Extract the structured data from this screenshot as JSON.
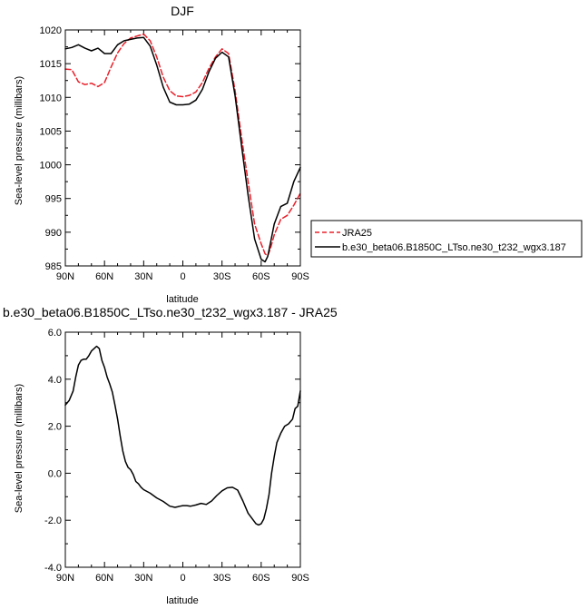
{
  "chart_data": [
    {
      "type": "line",
      "title": "DJF",
      "xlabel": "latitude",
      "ylabel": "Sea-level pressure (millibars)",
      "xlim": [
        90,
        -90
      ],
      "ylim": [
        985,
        1020
      ],
      "x_ticks": [
        90,
        60,
        30,
        0,
        -30,
        -60,
        -90
      ],
      "x_tick_labels": [
        "90N",
        "60N",
        "30N",
        "0",
        "30S",
        "60S",
        "90S"
      ],
      "y_ticks": [
        985,
        990,
        995,
        1000,
        1005,
        1010,
        1015,
        1020
      ],
      "y_tick_labels": [
        "985",
        "990",
        "995",
        "1000",
        "1005",
        "1010",
        "1015",
        "1020"
      ],
      "legend_position": "right",
      "series": [
        {
          "name": "JRA25",
          "color": "#e8202a",
          "dash": "dashed",
          "x": [
            90,
            85,
            80,
            75,
            70,
            65,
            60,
            55,
            50,
            45,
            40,
            35,
            30,
            25,
            20,
            15,
            10,
            5,
            0,
            -5,
            -10,
            -15,
            -20,
            -25,
            -30,
            -35,
            -40,
            -45,
            -50,
            -55,
            -60,
            -63,
            -65,
            -67,
            -70,
            -75,
            -80,
            -85,
            -90
          ],
          "y": [
            1014.2,
            1014.1,
            1012.3,
            1011.9,
            1012.1,
            1011.6,
            1012.2,
            1014.5,
            1016.6,
            1018.0,
            1018.8,
            1019.1,
            1019.4,
            1018.4,
            1016.0,
            1013.0,
            1011.0,
            1010.2,
            1010.1,
            1010.3,
            1010.8,
            1012.2,
            1014.3,
            1016.0,
            1017.2,
            1016.5,
            1011.0,
            1004.0,
            997.5,
            991.2,
            988.3,
            986.8,
            986.5,
            987.5,
            989.6,
            991.9,
            992.5,
            994.0,
            995.8
          ]
        },
        {
          "name": "b.e30_beta06.B1850C_LTso.ne30_t232_wgx3.187",
          "color": "#000000",
          "dash": "solid",
          "x": [
            90,
            85,
            80,
            75,
            70,
            65,
            60,
            55,
            50,
            45,
            40,
            35,
            30,
            25,
            20,
            15,
            10,
            5,
            0,
            -5,
            -10,
            -15,
            -20,
            -25,
            -30,
            -35,
            -40,
            -45,
            -50,
            -55,
            -60,
            -63,
            -65,
            -67,
            -70,
            -75,
            -80,
            -85,
            -90
          ],
          "y": [
            1017.2,
            1017.4,
            1017.8,
            1017.3,
            1016.9,
            1017.3,
            1016.5,
            1016.5,
            1017.8,
            1018.4,
            1018.6,
            1018.8,
            1018.9,
            1017.6,
            1014.8,
            1011.5,
            1009.3,
            1008.9,
            1008.9,
            1009.0,
            1009.6,
            1011.2,
            1013.8,
            1015.8,
            1016.7,
            1016.0,
            1010.2,
            1002.7,
            995.5,
            989.0,
            986.0,
            985.6,
            986.4,
            988.3,
            991.2,
            993.8,
            994.3,
            997.5,
            999.6
          ]
        }
      ]
    },
    {
      "type": "line",
      "title": "b.e30_beta06.B1850C_LTso.ne30_t232_wgx3.187 - JRA25",
      "xlabel": "latitude",
      "ylabel": "Sea-level pressure (millibars)",
      "xlim": [
        90,
        -90
      ],
      "ylim": [
        -4.0,
        6.0
      ],
      "x_ticks": [
        90,
        60,
        30,
        0,
        -30,
        -60,
        -90
      ],
      "x_tick_labels": [
        "90N",
        "60N",
        "30N",
        "0",
        "30S",
        "60S",
        "90S"
      ],
      "y_ticks": [
        -4.0,
        -2.0,
        0.0,
        2.0,
        4.0,
        6.0
      ],
      "y_tick_labels": [
        "-4.0",
        "-2.0",
        "0.0",
        "2.0",
        "4.0",
        "6.0"
      ],
      "series": [
        {
          "color": "#000000",
          "dash": "solid",
          "x": [
            90,
            87,
            84,
            82,
            80,
            78,
            76,
            74,
            72,
            70,
            68,
            66,
            64,
            62,
            60,
            58,
            56,
            54,
            52,
            50,
            48,
            46,
            44,
            42,
            40,
            38,
            36,
            34,
            32,
            30,
            25,
            20,
            15,
            10,
            6,
            4,
            2,
            0,
            -3,
            -6,
            -10,
            -14,
            -18,
            -22,
            -26,
            -30,
            -34,
            -38,
            -42,
            -46,
            -50,
            -54,
            -56,
            -58,
            -60,
            -62,
            -64,
            -66,
            -68,
            -70,
            -72,
            -75,
            -78,
            -81,
            -84,
            -86,
            -88,
            -90
          ],
          "y": [
            2.9,
            3.1,
            3.5,
            4.1,
            4.6,
            4.8,
            4.85,
            4.85,
            5.0,
            5.2,
            5.3,
            5.4,
            5.3,
            4.8,
            4.5,
            4.1,
            3.8,
            3.45,
            2.9,
            2.3,
            1.6,
            0.95,
            0.5,
            0.25,
            0.15,
            -0.05,
            -0.35,
            -0.45,
            -0.6,
            -0.7,
            -0.85,
            -1.05,
            -1.2,
            -1.4,
            -1.45,
            -1.43,
            -1.4,
            -1.38,
            -1.38,
            -1.4,
            -1.35,
            -1.28,
            -1.33,
            -1.18,
            -0.95,
            -0.75,
            -0.62,
            -0.6,
            -0.72,
            -1.18,
            -1.7,
            -2.0,
            -2.15,
            -2.2,
            -2.15,
            -1.95,
            -1.5,
            -0.9,
            0.0,
            0.7,
            1.3,
            1.7,
            2.0,
            2.1,
            2.3,
            2.75,
            2.85,
            3.5
          ]
        }
      ]
    }
  ]
}
